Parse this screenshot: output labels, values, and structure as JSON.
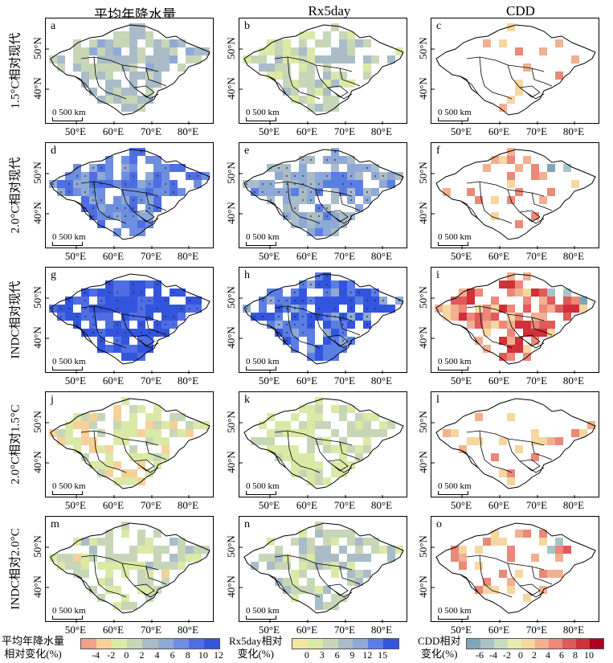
{
  "columns": [
    "平均年降水量",
    "Rx5day",
    "CDD"
  ],
  "rows": [
    "1.5°C相对现代",
    "2.0°C相对现代",
    "INDC相对现代",
    "2.0°C相对1.5°C",
    "INDC相对2.0°C"
  ],
  "panel_labels": [
    [
      "a",
      "b",
      "c"
    ],
    [
      "d",
      "e",
      "f"
    ],
    [
      "g",
      "h",
      "i"
    ],
    [
      "j",
      "k",
      "l"
    ],
    [
      "m",
      "n",
      "o"
    ]
  ],
  "scale_text": "500 km",
  "x_ticks": [
    "50°E",
    "60°E",
    "70°E",
    "80°E"
  ],
  "y_ticks": [
    "50°N",
    "40°N"
  ],
  "colors": {
    "precip": [
      "#f2a089",
      "#f7d19b",
      "#dbe9a6",
      "#c8d6b8",
      "#a9bcc8",
      "#8fa9d6",
      "#6e8fe0",
      "#4f6ee3",
      "#3355dd"
    ],
    "rx5day": [
      "#f2e6a0",
      "#dbe9a6",
      "#c8d6b8",
      "#a9bcc8",
      "#8fa9d6",
      "#5b7ee4",
      "#3355dd"
    ],
    "cdd": [
      "#7fa6b8",
      "#a9c4c8",
      "#c8dcc0",
      "#e8ecb0",
      "#f6d7a0",
      "#f2b090",
      "#ec8878",
      "#e05a5a",
      "#d0303a",
      "#b00020"
    ]
  },
  "chart_data": {
    "type": "heatmap",
    "description_grid": "5x3 panels of projected change maps over Central Asia",
    "legends": [
      {
        "title": "平均年降水量\n相对变化(%)",
        "ticks": [
          "-4",
          "-2",
          "0",
          "2",
          "4",
          "6",
          "8",
          "10",
          "12"
        ]
      },
      {
        "title": "Rx5day相对\n变化(%)",
        "ticks": [
          "0",
          "3",
          "6",
          "9",
          "12",
          "15"
        ]
      },
      {
        "title": "CDD相对\n变化(%)",
        "ticks": [
          "-6",
          "-4",
          "-2",
          "0",
          "2",
          "4",
          "6",
          "8",
          "10"
        ]
      }
    ],
    "panel_intensity": [
      [
        0.45,
        0.35,
        0.12
      ],
      [
        0.75,
        0.65,
        0.28
      ],
      [
        0.95,
        0.9,
        0.7
      ],
      [
        0.22,
        0.22,
        0.15
      ],
      [
        0.32,
        0.38,
        0.3
      ]
    ]
  }
}
